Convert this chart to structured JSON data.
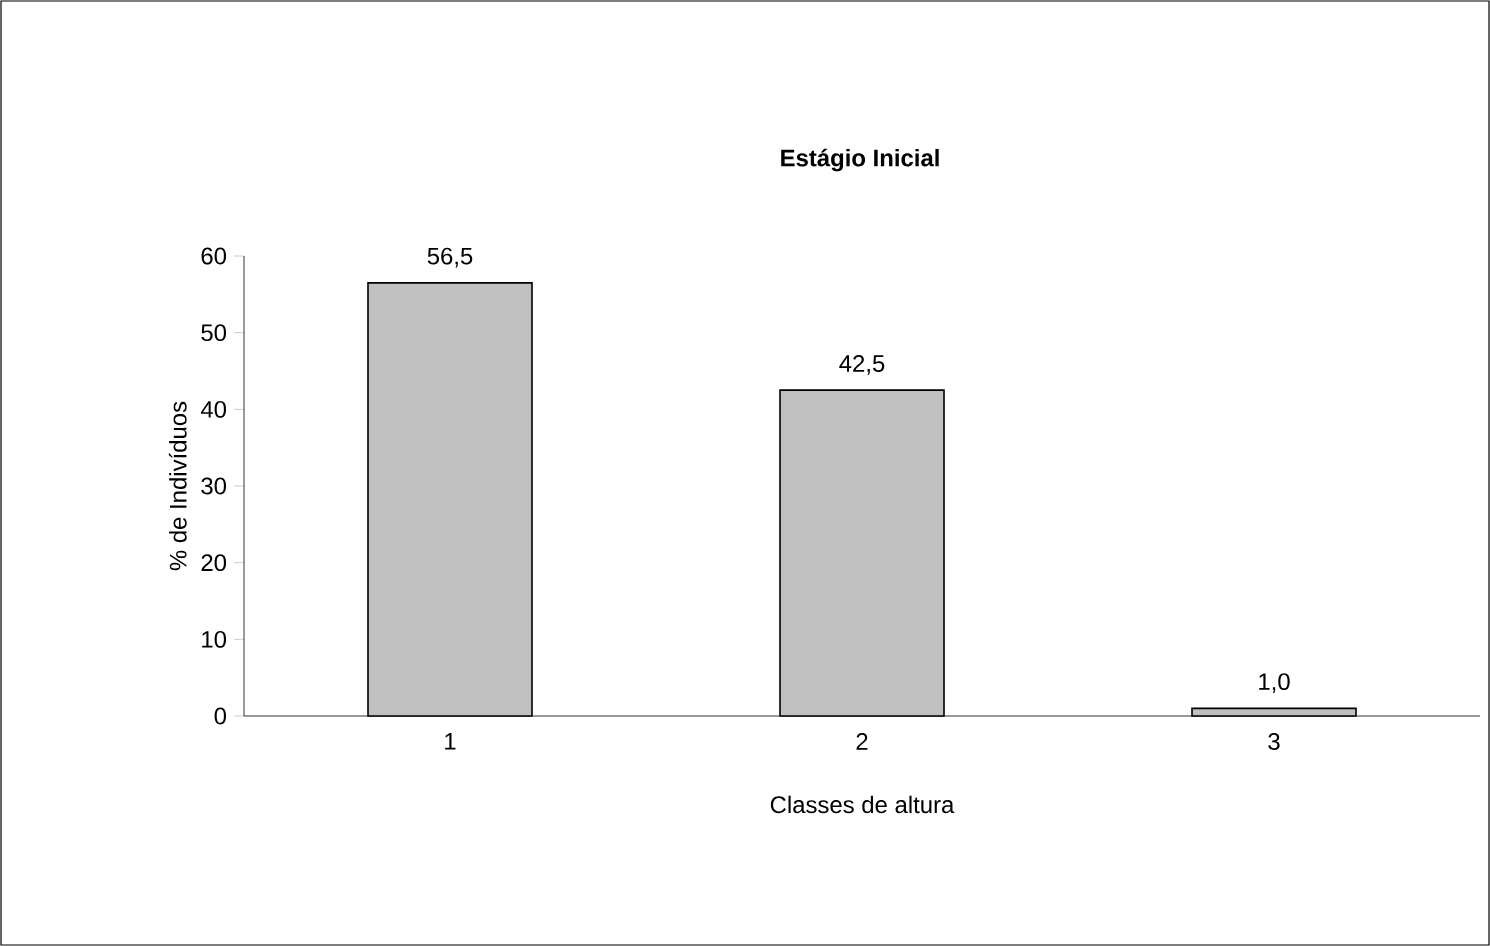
{
  "chart_data": {
    "type": "bar",
    "title": "Estágio Inicial",
    "xlabel": "Classes de altura",
    "ylabel": "% de Indivíduos",
    "categories": [
      "1",
      "2",
      "3"
    ],
    "values": [
      56.5,
      42.5,
      1.0
    ],
    "value_labels": [
      "56,5",
      "42,5",
      "1,0"
    ],
    "color": "#c0c0c0",
    "ylim": [
      0,
      60
    ],
    "yticks": [
      0,
      10,
      20,
      30,
      40,
      50,
      60
    ]
  }
}
